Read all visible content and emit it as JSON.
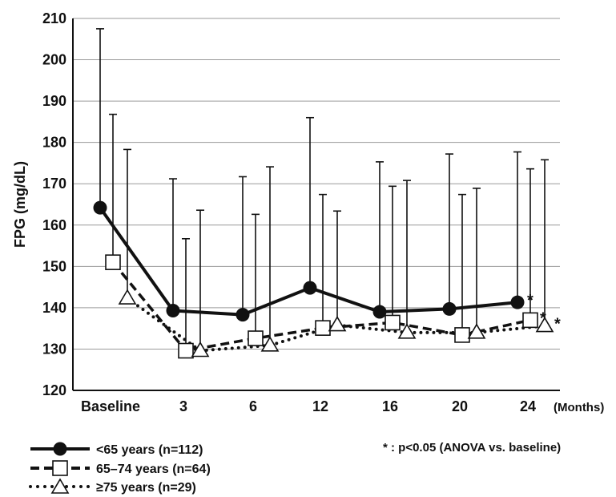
{
  "chart_data": {
    "type": "line",
    "ylabel": "FPG (mg/dL)",
    "x_unit_label": "(Months)",
    "categories": [
      "Baseline",
      "3",
      "6",
      "12",
      "16",
      "20",
      "24"
    ],
    "yticks": [
      "120",
      "130",
      "140",
      "150",
      "160",
      "170",
      "180",
      "190",
      "200",
      "210"
    ],
    "ylim": [
      120,
      210
    ],
    "grid": true,
    "legend_position": "bottom-left",
    "series": [
      {
        "name": "<65 years (n=112)",
        "marker": "filled-circle",
        "line": "solid",
        "color": "#111111",
        "values": [
          164.2,
          139.3,
          138.3,
          144.8,
          139.0,
          139.7,
          141.3
        ],
        "error_upper": [
          207.5,
          171.2,
          171.7,
          186.0,
          175.3,
          177.2,
          177.7
        ],
        "significance": [
          "",
          "",
          "",
          "",
          "",
          "",
          "*"
        ]
      },
      {
        "name": "65–74 years (n=64)",
        "marker": "open-square",
        "line": "dashed",
        "color": "#111111",
        "values": [
          151.0,
          129.6,
          132.6,
          135.1,
          136.4,
          133.4,
          137.0
        ],
        "error_upper": [
          186.8,
          156.7,
          162.6,
          167.4,
          169.4,
          167.4,
          173.6
        ],
        "significance": [
          "",
          "",
          "",
          "",
          "",
          "",
          "*"
        ]
      },
      {
        "name": "≥75 years (n=29)",
        "marker": "open-triangle",
        "line": "dotted",
        "color": "#111111",
        "values": [
          142.3,
          129.6,
          130.9,
          135.8,
          134.0,
          134.0,
          135.6
        ],
        "error_upper": [
          178.3,
          163.6,
          174.1,
          163.4,
          170.8,
          168.9,
          175.8
        ],
        "significance": [
          "",
          "",
          "",
          "",
          "",
          "",
          "*"
        ]
      }
    ],
    "annotation": "* : p<0.05 (ANOVA vs. baseline)"
  }
}
